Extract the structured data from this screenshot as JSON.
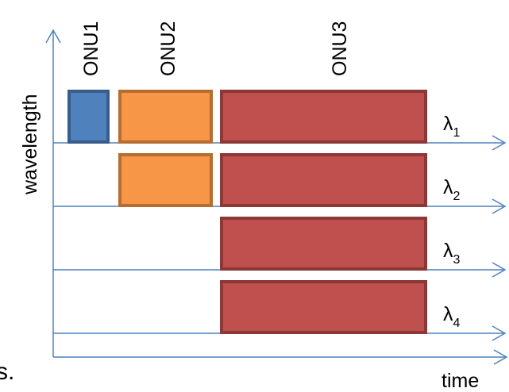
{
  "axes": {
    "y_label": "wavelength",
    "x_label": "time"
  },
  "onus": [
    {
      "label": "ONU1",
      "color": "#4f81bd"
    },
    {
      "label": "ONU2",
      "color": "#f79646"
    },
    {
      "label": "ONU3",
      "color": "#c0504d"
    }
  ],
  "channels": [
    {
      "symbol": "λ",
      "index": "1"
    },
    {
      "symbol": "λ",
      "index": "2"
    },
    {
      "symbol": "λ",
      "index": "3"
    },
    {
      "symbol": "λ",
      "index": "4"
    }
  ],
  "allocations": [
    {
      "onu": "ONU1",
      "channels": [
        "1"
      ]
    },
    {
      "onu": "ONU2",
      "channels": [
        "1",
        "2"
      ]
    },
    {
      "onu": "ONU3",
      "channels": [
        "1",
        "2",
        "3",
        "4"
      ]
    }
  ],
  "clipped_text": "s.",
  "colors": {
    "axis": "#4f81bd",
    "onu1_border": "#385d8a",
    "onu2_border": "#b66d31",
    "onu3_border": "#8c3836"
  }
}
